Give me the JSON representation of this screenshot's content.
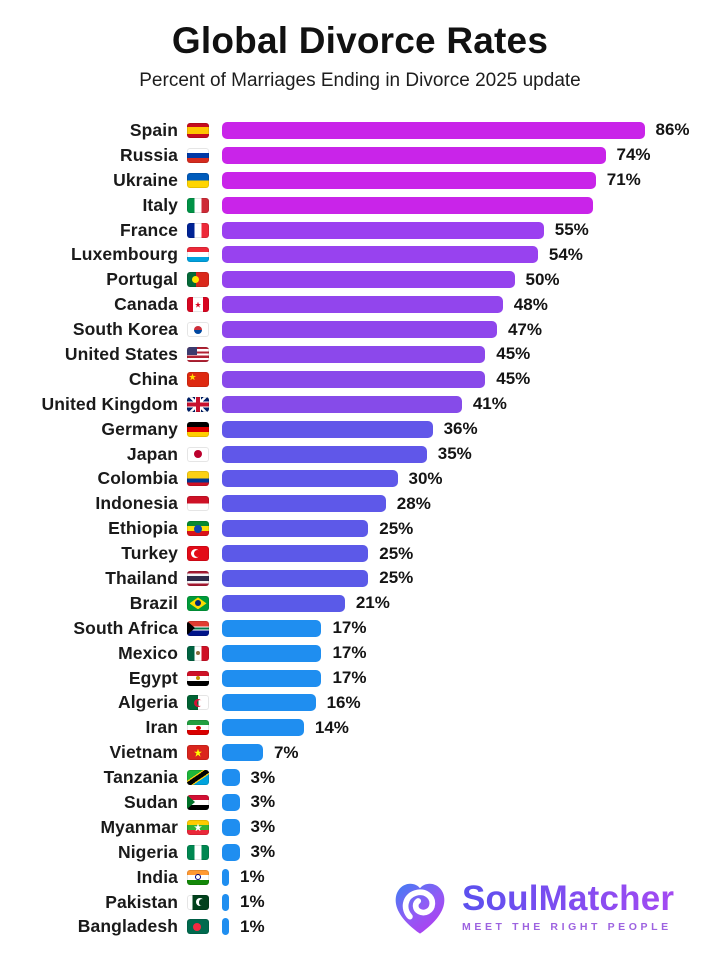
{
  "title": "Global Divorce Rates",
  "subtitle": "Percent of Marriages Ending in Divorce 2025 update",
  "brand": {
    "name": "SoulMatcher",
    "tagline": "MEET THE RIGHT PEOPLE"
  },
  "colors": {
    "background": "#ffffff",
    "text": "#161616",
    "bar_magenta": "#c924e9",
    "bar_violet": "#9b41ee",
    "bar_purple": "#874be9",
    "bar_indigo": "#5a5ae8",
    "bar_blue": "#1f8ef0",
    "brand_gradient_start": "#5b50ee",
    "brand_gradient_end": "#a44af2"
  },
  "chart_data": {
    "type": "bar",
    "orientation": "horizontal",
    "title": "Global Divorce Rates",
    "subtitle": "Percent of Marriages Ending in Divorce 2025 update",
    "unit": "%",
    "xlim": [
      0,
      100
    ],
    "grid": false,
    "legend": "none",
    "rows": [
      {
        "country": "Spain",
        "value": 86,
        "label": "86%",
        "flag": "es"
      },
      {
        "country": "Russia",
        "value": 74,
        "label": "74%",
        "flag": "ru"
      },
      {
        "country": "Ukraine",
        "value": 71,
        "label": "71%",
        "flag": "ua"
      },
      {
        "country": "Italy",
        "value": 70,
        "label": "",
        "flag": "it"
      },
      {
        "country": "France",
        "value": 55,
        "label": "55%",
        "flag": "fr"
      },
      {
        "country": "Luxembourg",
        "value": 54,
        "label": "54%",
        "flag": "lu"
      },
      {
        "country": "Portugal",
        "value": 50,
        "label": "50%",
        "flag": "pt"
      },
      {
        "country": "Canada",
        "value": 48,
        "label": "48%",
        "flag": "ca"
      },
      {
        "country": "South Korea",
        "value": 47,
        "label": "47%",
        "flag": "kr"
      },
      {
        "country": "United States",
        "value": 45,
        "label": "45%",
        "flag": "us"
      },
      {
        "country": "China",
        "value": 45,
        "label": "45%",
        "flag": "cn"
      },
      {
        "country": "United Kingdom",
        "value": 41,
        "label": "41%",
        "flag": "gb"
      },
      {
        "country": "Germany",
        "value": 36,
        "label": "36%",
        "flag": "de"
      },
      {
        "country": "Japan",
        "value": 35,
        "label": "35%",
        "flag": "jp"
      },
      {
        "country": "Colombia",
        "value": 30,
        "label": "30%",
        "flag": "co"
      },
      {
        "country": "Indonesia",
        "value": 28,
        "label": "28%",
        "flag": "id"
      },
      {
        "country": "Ethiopia",
        "value": 25,
        "label": "25%",
        "flag": "et"
      },
      {
        "country": "Turkey",
        "value": 25,
        "label": "25%",
        "flag": "tr"
      },
      {
        "country": "Thailand",
        "value": 25,
        "label": "25%",
        "flag": "th"
      },
      {
        "country": "Brazil",
        "value": 21,
        "label": "21%",
        "flag": "br"
      },
      {
        "country": "South Africa",
        "value": 17,
        "label": "17%",
        "flag": "za"
      },
      {
        "country": "Mexico",
        "value": 17,
        "label": "17%",
        "flag": "mx"
      },
      {
        "country": "Egypt",
        "value": 17,
        "label": "17%",
        "flag": "eg"
      },
      {
        "country": "Algeria",
        "value": 16,
        "label": "16%",
        "flag": "dz"
      },
      {
        "country": "Iran",
        "value": 14,
        "label": "14%",
        "flag": "ir"
      },
      {
        "country": "Vietnam",
        "value": 7,
        "label": "7%",
        "flag": "vn"
      },
      {
        "country": "Tanzania",
        "value": 3,
        "label": "3%",
        "flag": "tz"
      },
      {
        "country": "Sudan",
        "value": 3,
        "label": "3%",
        "flag": "sd"
      },
      {
        "country": "Myanmar",
        "value": 3,
        "label": "3%",
        "flag": "mm"
      },
      {
        "country": "Nigeria",
        "value": 3,
        "label": "3%",
        "flag": "ng"
      },
      {
        "country": "India",
        "value": 1,
        "label": "1%",
        "flag": "in"
      },
      {
        "country": "Pakistan",
        "value": 1,
        "label": "1%",
        "flag": "pk"
      },
      {
        "country": "Bangladesh",
        "value": 1,
        "label": "1%",
        "flag": "bd"
      }
    ]
  }
}
